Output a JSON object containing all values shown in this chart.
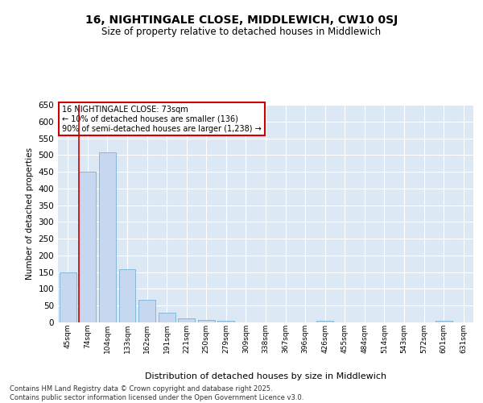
{
  "title_line1": "16, NIGHTINGALE CLOSE, MIDDLEWICH, CW10 0SJ",
  "title_line2": "Size of property relative to detached houses in Middlewich",
  "xlabel": "Distribution of detached houses by size in Middlewich",
  "ylabel": "Number of detached properties",
  "categories": [
    "45sqm",
    "74sqm",
    "104sqm",
    "133sqm",
    "162sqm",
    "191sqm",
    "221sqm",
    "250sqm",
    "279sqm",
    "309sqm",
    "338sqm",
    "367sqm",
    "396sqm",
    "426sqm",
    "455sqm",
    "484sqm",
    "514sqm",
    "543sqm",
    "572sqm",
    "601sqm",
    "631sqm"
  ],
  "values": [
    150,
    450,
    507,
    160,
    67,
    30,
    13,
    8,
    4,
    1,
    0,
    0,
    0,
    5,
    0,
    0,
    1,
    0,
    0,
    5,
    1
  ],
  "bar_color": "#c5d8ef",
  "bar_edge_color": "#7aafd4",
  "background_color": "#dce9f5",
  "grid_color": "#ffffff",
  "ylim": [
    0,
    650
  ],
  "yticks": [
    0,
    50,
    100,
    150,
    200,
    250,
    300,
    350,
    400,
    450,
    500,
    550,
    600,
    650
  ],
  "vline_color": "#cc0000",
  "annotation_box_text": "16 NIGHTINGALE CLOSE: 73sqm\n← 10% of detached houses are smaller (136)\n90% of semi-detached houses are larger (1,238) →",
  "annotation_box_color": "#cc0000",
  "annotation_box_fill": "#ffffff",
  "footer_text": "Contains HM Land Registry data © Crown copyright and database right 2025.\nContains public sector information licensed under the Open Government Licence v3.0.",
  "figsize": [
    6.0,
    5.0
  ],
  "dpi": 100
}
